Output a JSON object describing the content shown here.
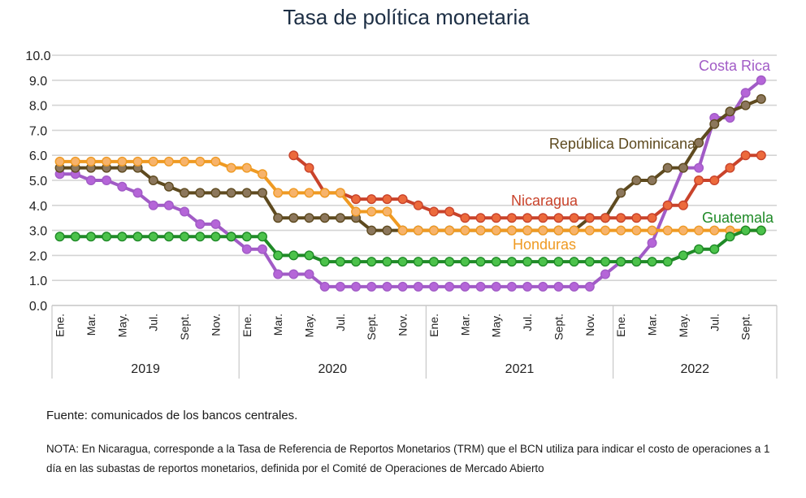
{
  "chart_data": {
    "type": "line",
    "title": "Tasa de política monetaria",
    "ylim": [
      0,
      10
    ],
    "yticks": [
      "0.0",
      "1.0",
      "2.0",
      "3.0",
      "4.0",
      "5.0",
      "6.0",
      "7.0",
      "8.0",
      "9.0",
      "10.0"
    ],
    "grid": true,
    "legend": "series labels placed inline next to lines",
    "x_tick_labels": [
      "Ene.",
      "Mar.",
      "May.",
      "Jul.",
      "Sept.",
      "Nov.",
      "Ene.",
      "Mar.",
      "May.",
      "Jul.",
      "Sept.",
      "Nov.",
      "Ene.",
      "Mar.",
      "May.",
      "Jul.",
      "Sept.",
      "Nov.",
      "Ene.",
      "Mar.",
      "May.",
      "Jul.",
      "Sept."
    ],
    "years": [
      "2019",
      "2020",
      "2021",
      "2022"
    ],
    "x": [
      "2019-01",
      "2019-02",
      "2019-03",
      "2019-04",
      "2019-05",
      "2019-06",
      "2019-07",
      "2019-08",
      "2019-09",
      "2019-10",
      "2019-11",
      "2019-12",
      "2020-01",
      "2020-02",
      "2020-03",
      "2020-04",
      "2020-05",
      "2020-06",
      "2020-07",
      "2020-08",
      "2020-09",
      "2020-10",
      "2020-11",
      "2020-12",
      "2021-01",
      "2021-02",
      "2021-03",
      "2021-04",
      "2021-05",
      "2021-06",
      "2021-07",
      "2021-08",
      "2021-09",
      "2021-10",
      "2021-11",
      "2021-12",
      "2022-01",
      "2022-02",
      "2022-03",
      "2022-04",
      "2022-05",
      "2022-06",
      "2022-07",
      "2022-08",
      "2022-09",
      "2022-10"
    ],
    "series": [
      {
        "name": "Costa Rica",
        "color": "#a15bc6",
        "marker": "#b565d8",
        "values": [
          5.25,
          5.25,
          5.0,
          5.0,
          4.75,
          4.5,
          4.0,
          4.0,
          3.75,
          3.25,
          3.25,
          2.75,
          2.25,
          2.25,
          1.25,
          1.25,
          1.25,
          0.75,
          0.75,
          0.75,
          0.75,
          0.75,
          0.75,
          0.75,
          0.75,
          0.75,
          0.75,
          0.75,
          0.75,
          0.75,
          0.75,
          0.75,
          0.75,
          0.75,
          0.75,
          1.25,
          1.75,
          1.75,
          2.5,
          4.0,
          5.5,
          5.5,
          7.5,
          7.5,
          8.5,
          9.0
        ]
      },
      {
        "name": "República Dominicana",
        "color": "#5e4a1f",
        "marker": "#8c775c",
        "values": [
          5.5,
          5.5,
          5.5,
          5.5,
          5.5,
          5.5,
          5.0,
          4.75,
          4.5,
          4.5,
          4.5,
          4.5,
          4.5,
          4.5,
          3.5,
          3.5,
          3.5,
          3.5,
          3.5,
          3.5,
          3.0,
          3.0,
          3.0,
          3.0,
          3.0,
          3.0,
          3.0,
          3.0,
          3.0,
          3.0,
          3.0,
          3.0,
          3.0,
          3.0,
          3.5,
          3.5,
          4.5,
          5.0,
          5.0,
          5.5,
          5.5,
          6.5,
          7.25,
          7.75,
          8.0,
          8.25
        ]
      },
      {
        "name": "Nicaragua",
        "color": "#c9432b",
        "marker": "#ec6a3c",
        "values": [
          null,
          null,
          null,
          null,
          null,
          null,
          null,
          null,
          null,
          null,
          null,
          null,
          null,
          null,
          null,
          6.0,
          5.5,
          4.5,
          4.5,
          4.25,
          4.25,
          4.25,
          4.25,
          4.0,
          3.75,
          3.75,
          3.5,
          3.5,
          3.5,
          3.5,
          3.5,
          3.5,
          3.5,
          3.5,
          3.5,
          3.5,
          3.5,
          3.5,
          3.5,
          4.0,
          4.0,
          5.0,
          5.0,
          5.5,
          6.0,
          6.0
        ]
      },
      {
        "name": "Honduras",
        "color": "#ef9a22",
        "marker": "#f7b36b",
        "values": [
          5.75,
          5.75,
          5.75,
          5.75,
          5.75,
          5.75,
          5.75,
          5.75,
          5.75,
          5.75,
          5.75,
          5.5,
          5.5,
          5.25,
          4.5,
          4.5,
          4.5,
          4.5,
          4.5,
          3.75,
          3.75,
          3.75,
          3.0,
          3.0,
          3.0,
          3.0,
          3.0,
          3.0,
          3.0,
          3.0,
          3.0,
          3.0,
          3.0,
          3.0,
          3.0,
          3.0,
          3.0,
          3.0,
          3.0,
          3.0,
          3.0,
          3.0,
          3.0,
          3.0,
          3.0,
          3.0
        ]
      },
      {
        "name": "Guatemala",
        "color": "#1f8a27",
        "marker": "#4cc24b",
        "values": [
          2.75,
          2.75,
          2.75,
          2.75,
          2.75,
          2.75,
          2.75,
          2.75,
          2.75,
          2.75,
          2.75,
          2.75,
          2.75,
          2.75,
          2.0,
          2.0,
          2.0,
          1.75,
          1.75,
          1.75,
          1.75,
          1.75,
          1.75,
          1.75,
          1.75,
          1.75,
          1.75,
          1.75,
          1.75,
          1.75,
          1.75,
          1.75,
          1.75,
          1.75,
          1.75,
          1.75,
          1.75,
          1.75,
          1.75,
          1.75,
          2.0,
          2.25,
          2.25,
          2.75,
          3.0,
          3.0
        ]
      }
    ]
  },
  "footer": {
    "source": "Fuente: comunicados de los bancos centrales.",
    "note": "NOTA: En Nicaragua, corresponde a la Tasa de Referencia de Reportos Monetarios (TRM) que el BCN utiliza para indicar el costo de operaciones a 1 día en las subastas de reportos monetarios, definida por el Comité de Operaciones de Mercado Abierto"
  }
}
